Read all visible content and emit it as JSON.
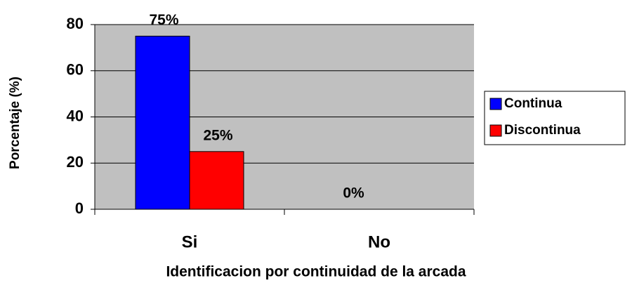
{
  "chart_data": {
    "type": "bar",
    "categories": [
      "Si",
      "No"
    ],
    "series": [
      {
        "name": "Continua",
        "color": "#0000ff",
        "values": [
          75,
          0
        ],
        "value_labels": [
          "75%",
          "0%"
        ]
      },
      {
        "name": "Discontinua",
        "color": "#ff0000",
        "values": [
          25,
          0
        ],
        "value_labels": [
          "25%",
          null
        ]
      }
    ],
    "x_label": "Identificacion por continuidad de la arcada",
    "y_label": "Porcentaje (%)",
    "ylim": [
      0,
      80
    ],
    "yticks": [
      0,
      20,
      40,
      60,
      80
    ],
    "grid": true,
    "legend": "right"
  }
}
